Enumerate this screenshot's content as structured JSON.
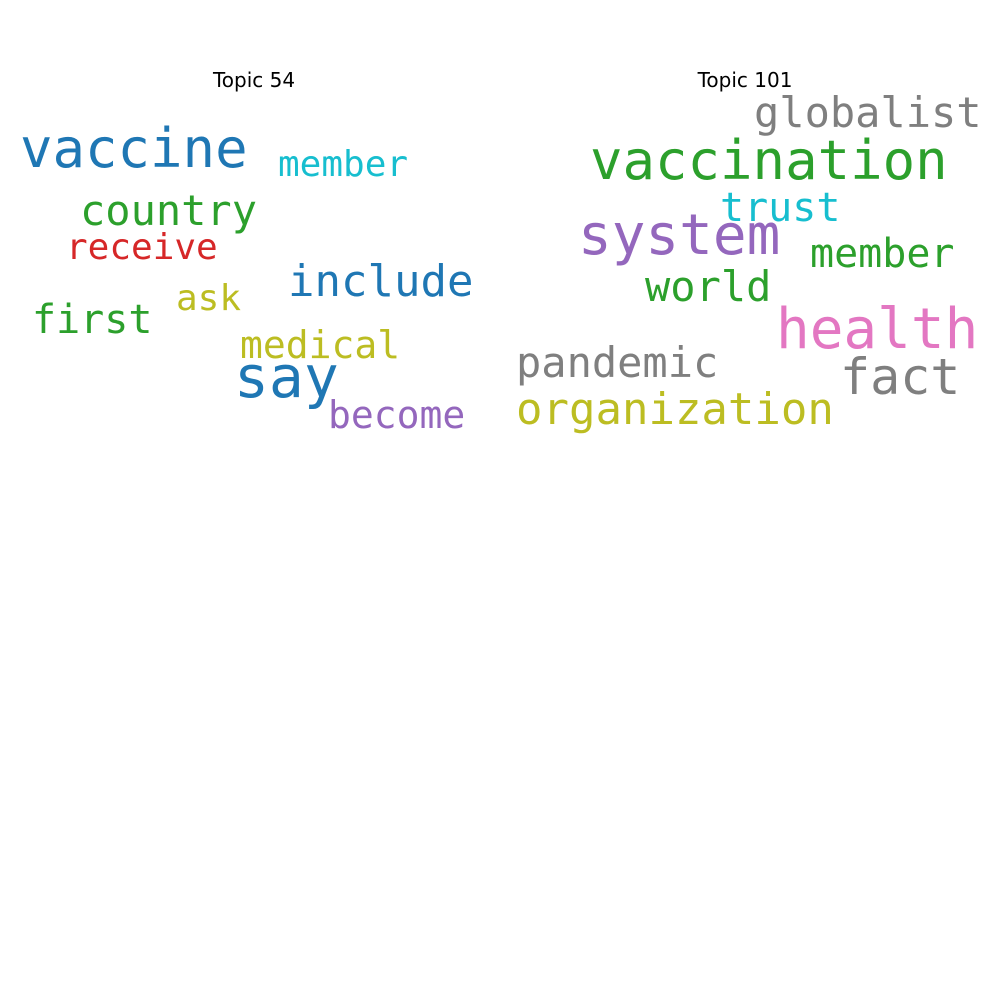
{
  "colors": {
    "blue": "#1f77b4",
    "green": "#2ca02c",
    "red": "#d62728",
    "purple": "#9467bd",
    "pink": "#e377c2",
    "gray": "#7f7f7f",
    "olive": "#bcbd22",
    "cyan": "#17becf"
  },
  "topics": [
    {
      "title": "Topic 54",
      "words": [
        {
          "text": "vaccine",
          "color": "#1f77b4"
        },
        {
          "text": "member",
          "color": "#17becf"
        },
        {
          "text": "country",
          "color": "#2ca02c"
        },
        {
          "text": "receive",
          "color": "#d62728"
        },
        {
          "text": "include",
          "color": "#1f77b4"
        },
        {
          "text": "ask",
          "color": "#bcbd22"
        },
        {
          "text": "first",
          "color": "#2ca02c"
        },
        {
          "text": "medical",
          "color": "#bcbd22"
        },
        {
          "text": "say",
          "color": "#1f77b4"
        },
        {
          "text": "become",
          "color": "#9467bd"
        }
      ]
    },
    {
      "title": "Topic 101",
      "words": [
        {
          "text": "globalist",
          "color": "#7f7f7f"
        },
        {
          "text": "vaccination",
          "color": "#2ca02c"
        },
        {
          "text": "trust",
          "color": "#17becf"
        },
        {
          "text": "system",
          "color": "#9467bd"
        },
        {
          "text": "member",
          "color": "#2ca02c"
        },
        {
          "text": "world",
          "color": "#2ca02c"
        },
        {
          "text": "health",
          "color": "#e377c2"
        },
        {
          "text": "pandemic",
          "color": "#7f7f7f"
        },
        {
          "text": "fact",
          "color": "#7f7f7f"
        },
        {
          "text": "organization",
          "color": "#bcbd22"
        }
      ]
    }
  ]
}
